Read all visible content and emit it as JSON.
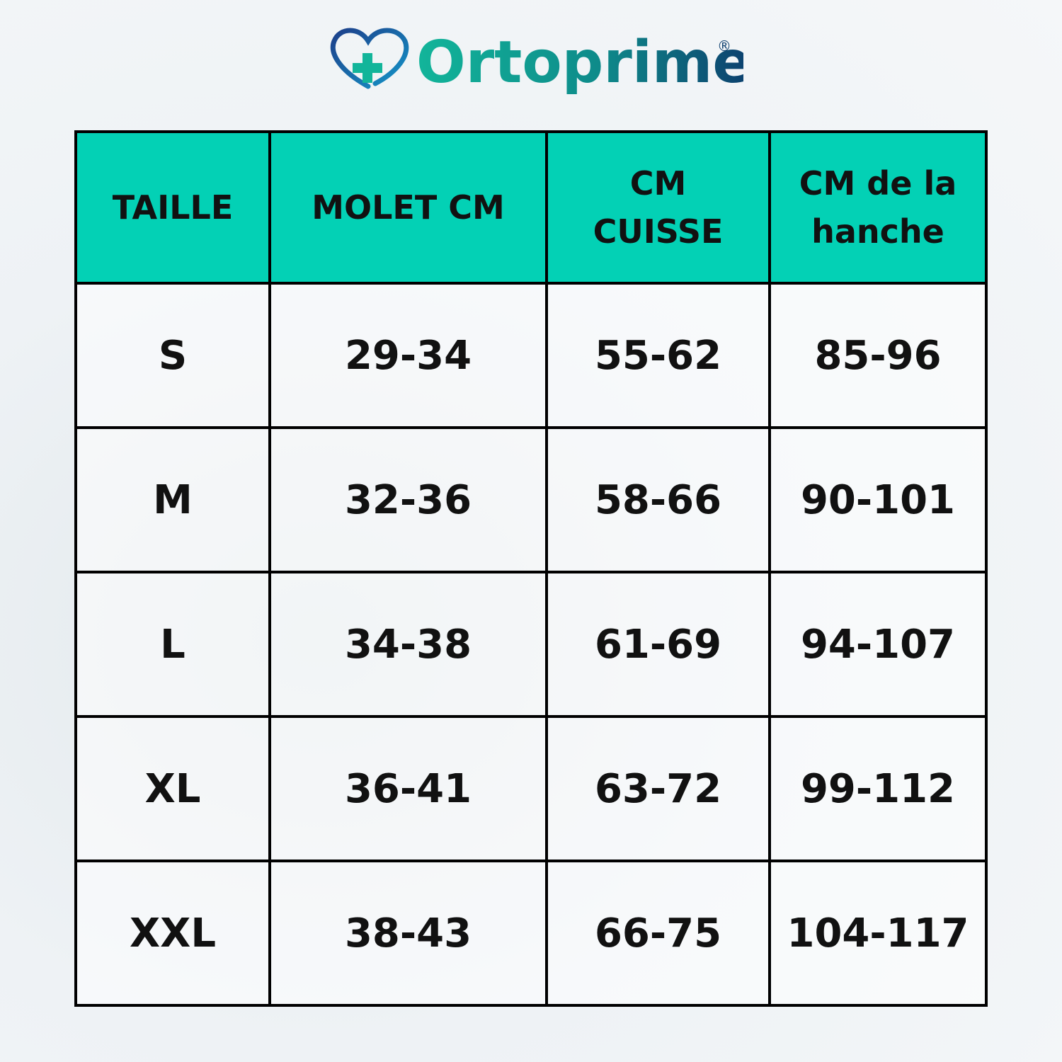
{
  "logo": {
    "name": "Ortoprime",
    "mark": "®"
  },
  "table": {
    "header": [
      "TAILLE",
      "MOLET CM",
      "CM CUISSE",
      "CM de la hanche"
    ],
    "rows": [
      [
        "S",
        "29-34",
        "55-62",
        "85-96"
      ],
      [
        "M",
        "32-36",
        "58-66",
        "90-101"
      ],
      [
        "L",
        "34-38",
        "61-69",
        "94-107"
      ],
      [
        "XL",
        "36-41",
        "63-72",
        "99-112"
      ],
      [
        "XXL",
        "38-43",
        "66-75",
        "104-117"
      ]
    ]
  }
}
